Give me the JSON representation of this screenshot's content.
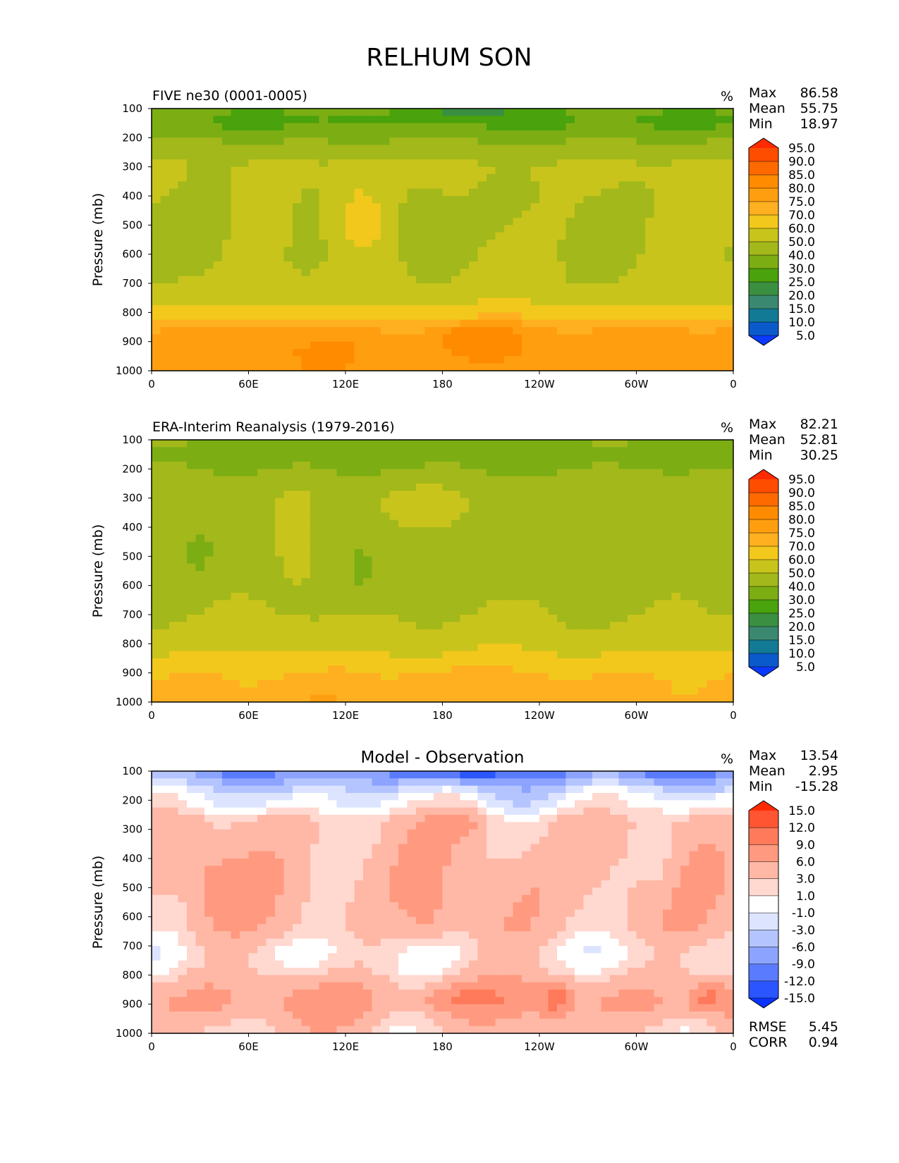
{
  "figure_title": "RELHUM SON",
  "chart_data": [
    {
      "type": "heatmap",
      "title": "FIVE ne30 (0001-0005)",
      "units": "%",
      "xlabel": "",
      "ylabel": "Pressure (mb)",
      "x_ticks": [
        "0",
        "60E",
        "120E",
        "180",
        "120W",
        "60W",
        "0"
      ],
      "y_ticks": [
        "100",
        "200",
        "300",
        "400",
        "500",
        "600",
        "700",
        "800",
        "900",
        "1000"
      ],
      "xlim": [
        0,
        360
      ],
      "ylim": [
        1000,
        100
      ],
      "stats": [
        {
          "label": "Max",
          "value": "86.58"
        },
        {
          "label": "Mean",
          "value": "55.75"
        },
        {
          "label": "Min",
          "value": "18.97"
        }
      ],
      "colorbar": {
        "levels": [
          "95.0",
          "90.0",
          "85.0",
          "80.0",
          "75.0",
          "70.0",
          "60.0",
          "50.0",
          "40.0",
          "30.0",
          "25.0",
          "20.0",
          "15.0",
          "10.0",
          "5.0"
        ],
        "colors": [
          "#ff2a00",
          "#ff4d00",
          "#ff6a00",
          "#ff8c00",
          "#ff9f10",
          "#ffb020",
          "#f2c81c",
          "#c8c41c",
          "#a3b81a",
          "#7cae14",
          "#4aa20c",
          "#3a8f40",
          "#3a8870",
          "#137a96",
          "#0a5acc",
          "#0a3aff"
        ]
      },
      "bands": [
        {
          "p": 100,
          "value": 32
        },
        {
          "p": 150,
          "value": 28
        },
        {
          "p": 200,
          "value": 38
        },
        {
          "p": 250,
          "value": 45
        },
        {
          "p": 300,
          "value": 52
        },
        {
          "p": 400,
          "value": 50
        },
        {
          "p": 500,
          "value": 50
        },
        {
          "p": 600,
          "value": 50
        },
        {
          "p": 700,
          "value": 52
        },
        {
          "p": 760,
          "value": 58
        },
        {
          "p": 800,
          "value": 65
        },
        {
          "p": 830,
          "value": 72
        },
        {
          "p": 870,
          "value": 77
        },
        {
          "p": 930,
          "value": 79
        },
        {
          "p": 1000,
          "value": 78
        }
      ],
      "features": [
        {
          "lon": 35,
          "p": 450,
          "rlon": 12,
          "rp": 200,
          "value": 45
        },
        {
          "lon": 165,
          "p": 500,
          "rlon": 20,
          "rp": 140,
          "value": 45
        },
        {
          "lon": 130,
          "p": 480,
          "rlon": 18,
          "rp": 160,
          "value": 65
        },
        {
          "lon": 198,
          "p": 890,
          "rlon": 25,
          "rp": 40,
          "value": 84
        },
        {
          "lon": 198,
          "p": 110,
          "rlon": 30,
          "rp": 25,
          "value": 22
        }
      ]
    },
    {
      "type": "heatmap",
      "title": "ERA-Interim Reanalysis (1979-2016)",
      "units": "%",
      "xlabel": "",
      "ylabel": "Pressure (mb)",
      "x_ticks": [
        "0",
        "60E",
        "120E",
        "180",
        "120W",
        "60W",
        "0"
      ],
      "y_ticks": [
        "100",
        "200",
        "300",
        "400",
        "500",
        "600",
        "700",
        "800",
        "900",
        "1000"
      ],
      "xlim": [
        0,
        360
      ],
      "ylim": [
        1000,
        100
      ],
      "stats": [
        {
          "label": "Max",
          "value": "82.21"
        },
        {
          "label": "Mean",
          "value": "52.81"
        },
        {
          "label": "Min",
          "value": "30.25"
        }
      ],
      "colorbar": {
        "levels": [
          "95.0",
          "90.0",
          "85.0",
          "80.0",
          "75.0",
          "70.0",
          "60.0",
          "50.0",
          "40.0",
          "30.0",
          "25.0",
          "20.0",
          "15.0",
          "10.0",
          "5.0"
        ],
        "colors": [
          "#ff2a00",
          "#ff4d00",
          "#ff6a00",
          "#ff8c00",
          "#ff9f10",
          "#ffb020",
          "#f2c81c",
          "#c8c41c",
          "#a3b81a",
          "#7cae14",
          "#4aa20c",
          "#3a8f40",
          "#3a8870",
          "#137a96",
          "#0a5acc",
          "#0a3aff"
        ]
      },
      "bands": [
        {
          "p": 100,
          "value": 38
        },
        {
          "p": 170,
          "value": 36
        },
        {
          "p": 250,
          "value": 45
        },
        {
          "p": 300,
          "value": 48
        },
        {
          "p": 400,
          "value": 46
        },
        {
          "p": 500,
          "value": 45
        },
        {
          "p": 600,
          "value": 46
        },
        {
          "p": 700,
          "value": 50
        },
        {
          "p": 780,
          "value": 54
        },
        {
          "p": 830,
          "value": 60
        },
        {
          "p": 870,
          "value": 66
        },
        {
          "p": 920,
          "value": 71
        },
        {
          "p": 1000,
          "value": 73
        }
      ],
      "features": [
        {
          "lon": 30,
          "p": 480,
          "rlon": 10,
          "rp": 110,
          "value": 38
        },
        {
          "lon": 130,
          "p": 540,
          "rlon": 10,
          "rp": 90,
          "value": 38
        },
        {
          "lon": 168,
          "p": 330,
          "rlon": 25,
          "rp": 60,
          "value": 55
        },
        {
          "lon": 90,
          "p": 450,
          "rlon": 12,
          "rp": 180,
          "value": 55
        },
        {
          "lon": 185,
          "p": 940,
          "rlon": 40,
          "rp": 60,
          "value": 73
        }
      ]
    },
    {
      "type": "heatmap",
      "title": "Model - Observation",
      "units": "%",
      "xlabel": "",
      "ylabel": "Pressure (mb)",
      "x_ticks": [
        "0",
        "60E",
        "120E",
        "180",
        "120W",
        "60W",
        "0"
      ],
      "y_ticks": [
        "100",
        "200",
        "300",
        "400",
        "500",
        "600",
        "700",
        "800",
        "900",
        "1000"
      ],
      "xlim": [
        0,
        360
      ],
      "ylim": [
        1000,
        100
      ],
      "stats": [
        {
          "label": "Max",
          "value": "13.54"
        },
        {
          "label": "Mean",
          "value": "2.95"
        },
        {
          "label": "Min",
          "value": "-15.28"
        }
      ],
      "extra_stats": [
        {
          "label": "RMSE",
          "value": "5.45"
        },
        {
          "label": "CORR",
          "value": "0.94"
        }
      ],
      "colorbar": {
        "levels": [
          "15.0",
          "12.0",
          "9.0",
          "6.0",
          "3.0",
          "1.0",
          "-1.0",
          "-3.0",
          "-6.0",
          "-9.0",
          "-12.0",
          "-15.0"
        ],
        "colors": [
          "#ff2a00",
          "#ff5533",
          "#ff7a5a",
          "#ff9a80",
          "#ffb8a6",
          "#ffd8d0",
          "#ffffff",
          "#dce4ff",
          "#b4c4ff",
          "#8ca4ff",
          "#5b7bff",
          "#2a55ff",
          "#0a33ff"
        ]
      },
      "bands": [
        {
          "p": 100,
          "value": -9
        },
        {
          "p": 140,
          "value": -5
        },
        {
          "p": 180,
          "value": -1.5
        },
        {
          "p": 220,
          "value": 0
        },
        {
          "p": 270,
          "value": 3.5
        },
        {
          "p": 400,
          "value": 4.5
        },
        {
          "p": 520,
          "value": 5
        },
        {
          "p": 640,
          "value": 4
        },
        {
          "p": 720,
          "value": 1.5
        },
        {
          "p": 780,
          "value": 2.5
        },
        {
          "p": 850,
          "value": 5.5
        },
        {
          "p": 900,
          "value": 6.5
        },
        {
          "p": 1000,
          "value": 3
        }
      ],
      "features": [
        {
          "lon": 40,
          "p": 500,
          "rlon": 12,
          "rp": 100,
          "value": 7.5
        },
        {
          "lon": 170,
          "p": 560,
          "rlon": 10,
          "rp": 100,
          "value": 7.5
        },
        {
          "lon": 190,
          "p": 280,
          "rlon": 15,
          "rp": 50,
          "value": 7.5
        },
        {
          "lon": 195,
          "p": 880,
          "rlon": 25,
          "rp": 45,
          "value": 9.5
        },
        {
          "lon": 250,
          "p": 880,
          "rlon": 10,
          "rp": 60,
          "value": 10.5
        },
        {
          "lon": 345,
          "p": 880,
          "rlon": 12,
          "rp": 50,
          "value": 10
        },
        {
          "lon": 200,
          "p": 110,
          "rlon": 40,
          "rp": 25,
          "value": -12.5
        },
        {
          "lon": 320,
          "p": 110,
          "rlon": 20,
          "rp": 25,
          "value": -12.5
        },
        {
          "lon": 310,
          "p": 380,
          "rlon": 15,
          "rp": 160,
          "value": 2
        },
        {
          "lon": 95,
          "p": 730,
          "rlon": 20,
          "rp": 50,
          "value": 0
        }
      ]
    }
  ]
}
